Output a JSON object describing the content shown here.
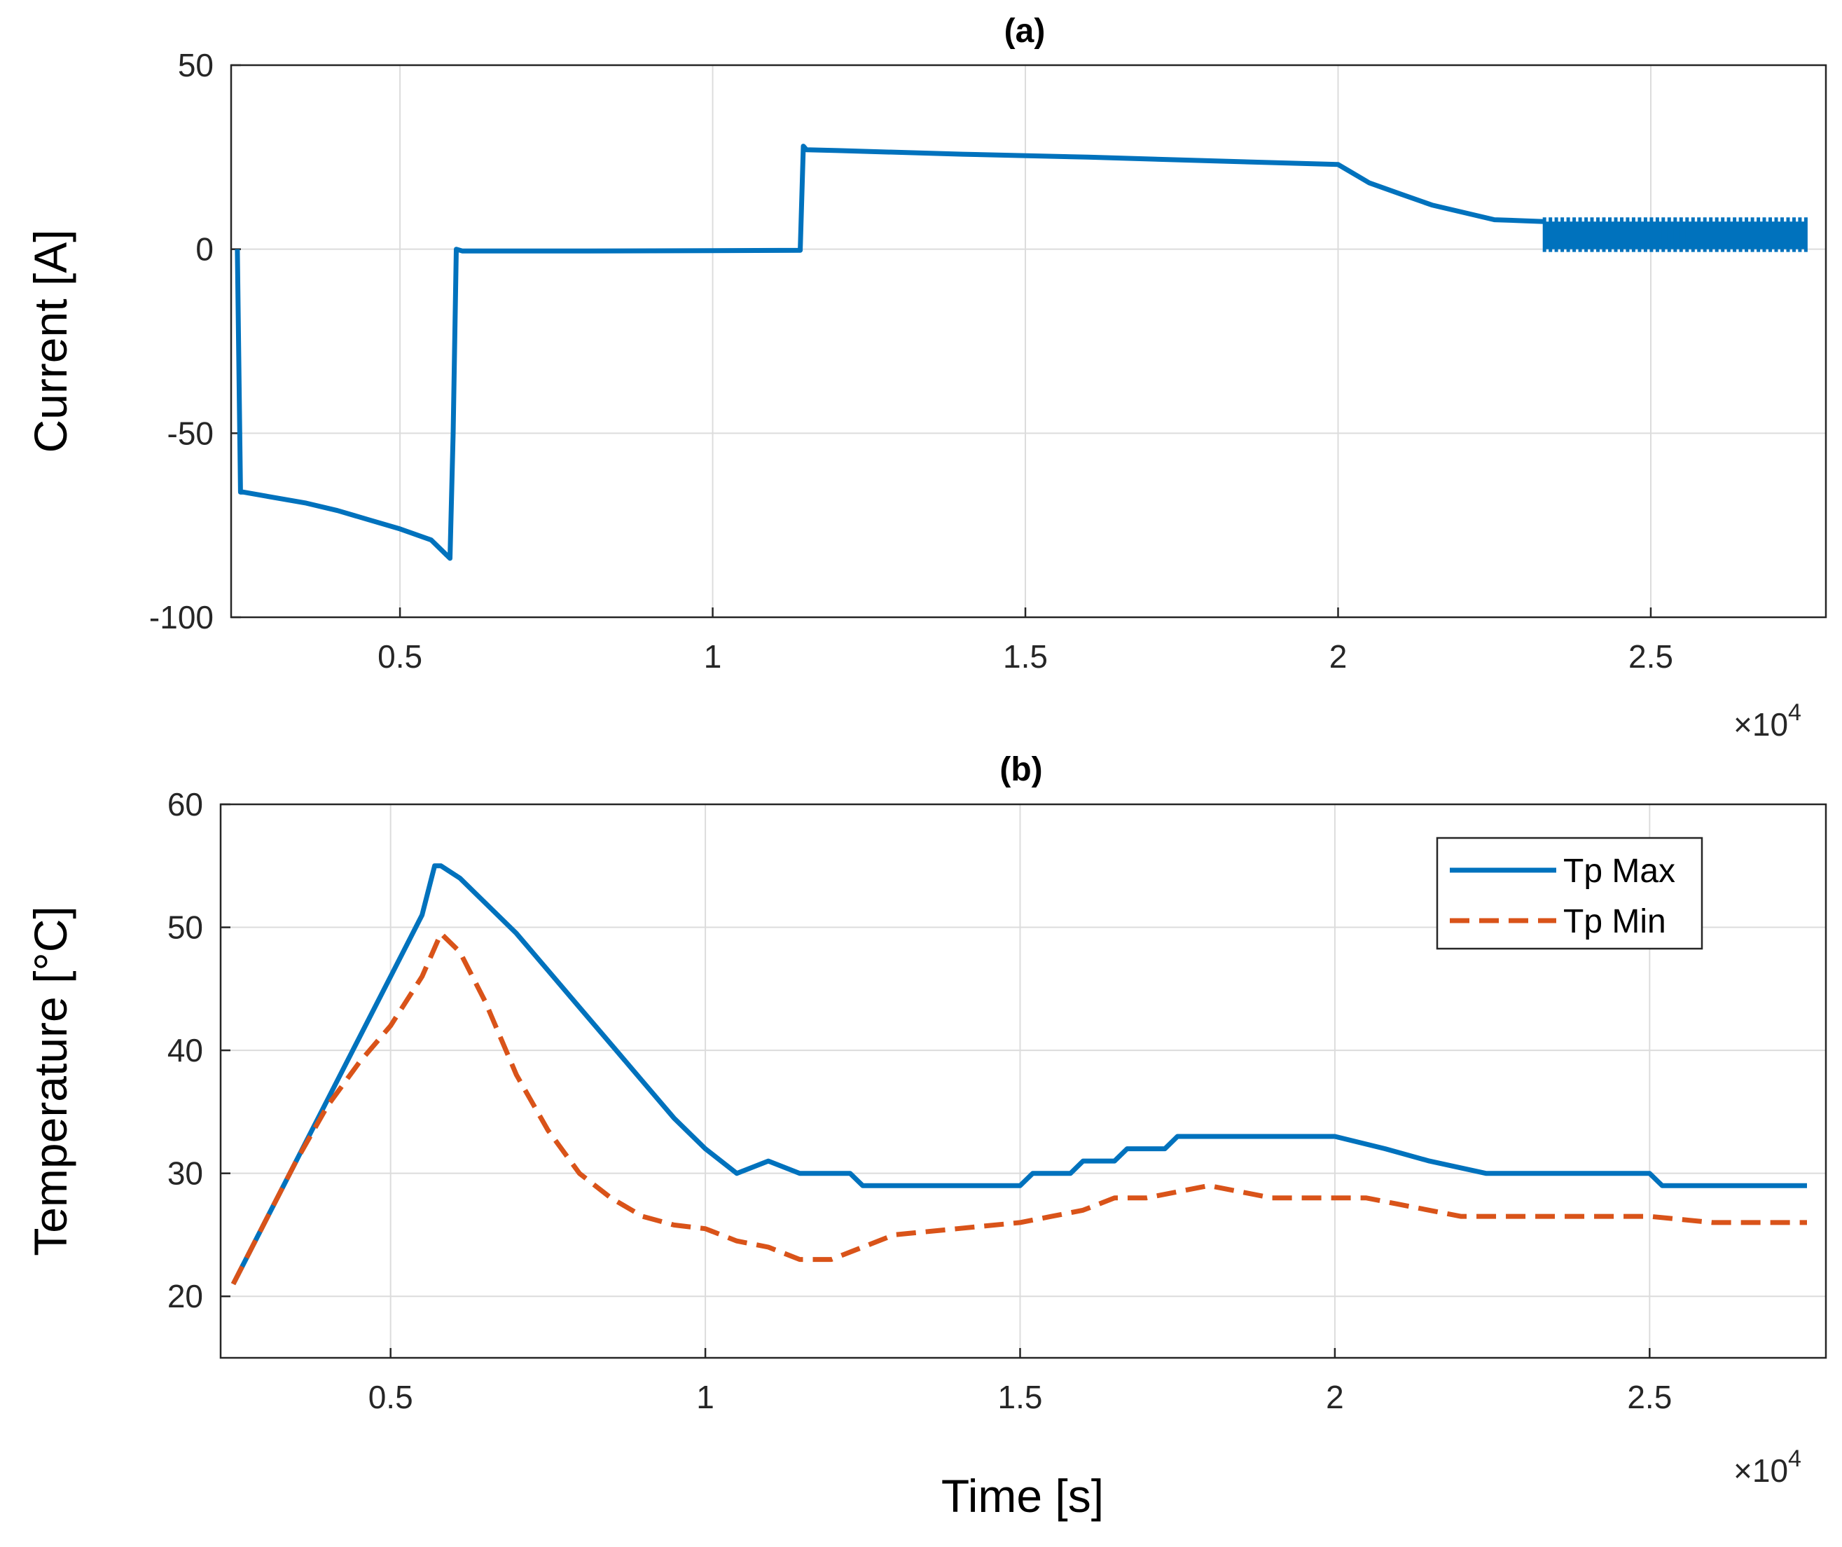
{
  "chart_data": [
    {
      "type": "line",
      "title": "(a)",
      "xlabel": "",
      "ylabel": "Current [A]",
      "xlim": [
        2300,
        27800
      ],
      "ylim": [
        -100,
        50
      ],
      "xticks": [
        5000,
        10000,
        15000,
        20000,
        25000
      ],
      "xtick_labels": [
        "0.5",
        "1",
        "1.5",
        "2",
        "2.5"
      ],
      "yticks": [
        -100,
        -50,
        0,
        50
      ],
      "ytick_labels": [
        "-100",
        "-50",
        "0",
        "50"
      ],
      "x_exponent": {
        "base": "×10",
        "power": "4"
      },
      "grid": true,
      "series": [
        {
          "name": "Current",
          "color": "#0072BD",
          "style": "solid",
          "x": [
            2400,
            2400,
            2450,
            2500,
            3000,
            3500,
            4000,
            4500,
            5000,
            5500,
            5800,
            5850,
            5900,
            6000,
            8000,
            10000,
            11400,
            11400,
            11450,
            11500,
            12000,
            14000,
            16000,
            18000,
            20000,
            20200,
            20500,
            21000,
            21500,
            22000,
            22500,
            23000,
            23300
          ],
          "y": [
            0,
            0,
            -66,
            -66,
            -67.5,
            -69,
            -71,
            -73.5,
            -76,
            -79,
            -84,
            -50,
            0,
            -0.5,
            -0.5,
            -0.4,
            -0.3,
            0,
            28,
            27,
            26.8,
            25.8,
            25,
            24,
            23,
            21,
            18,
            15,
            12,
            10,
            8,
            7.7,
            7.5
          ],
          "noise_band": {
            "x_start": 23300,
            "x_end": 27500,
            "y_low": 0,
            "y_high": 7.5
          }
        }
      ]
    },
    {
      "type": "line",
      "title": "(b)",
      "xlabel": "Time [s]",
      "ylabel": "Temperature [°C]",
      "xlim": [
        2300,
        27800
      ],
      "ylim": [
        15,
        60
      ],
      "xticks": [
        5000,
        10000,
        15000,
        20000,
        25000
      ],
      "xtick_labels": [
        "0.5",
        "1",
        "1.5",
        "2",
        "2.5"
      ],
      "yticks": [
        20,
        30,
        40,
        50,
        60
      ],
      "ytick_labels": [
        "20",
        "30",
        "40",
        "50",
        "60"
      ],
      "x_exponent": {
        "base": "×10",
        "power": "4"
      },
      "grid": true,
      "legend": {
        "placement": "top-right",
        "entries": [
          "Tp Max",
          "Tp Min"
        ]
      },
      "series": [
        {
          "name": "Tp Max",
          "color": "#0072BD",
          "style": "solid",
          "x": [
            2500,
            3000,
            3500,
            4000,
            4500,
            5000,
            5500,
            5700,
            5800,
            6100,
            6500,
            7000,
            7500,
            8000,
            8500,
            9000,
            9500,
            10000,
            10500,
            11000,
            11500,
            11600,
            12300,
            12500,
            15000,
            15200,
            15800,
            16000,
            16500,
            16700,
            17300,
            17500,
            20000,
            20800,
            21500,
            22400,
            25000,
            25200,
            27500
          ],
          "y": [
            21,
            26,
            31,
            36,
            41,
            46,
            51,
            55,
            55,
            54,
            52,
            49.5,
            46.5,
            43.5,
            40.5,
            37.5,
            34.5,
            32,
            30,
            31,
            30,
            30,
            30,
            29,
            29,
            30,
            30,
            31,
            31,
            32,
            32,
            33,
            33,
            32,
            31,
            30,
            30,
            29,
            29
          ]
        },
        {
          "name": "Tp Min",
          "color": "#D95319",
          "style": "dashed",
          "x": [
            2500,
            3000,
            3500,
            4000,
            4500,
            5000,
            5500,
            5800,
            6100,
            6500,
            7000,
            7500,
            8000,
            8500,
            9000,
            9500,
            10000,
            10500,
            11000,
            11500,
            12000,
            12500,
            13000,
            14000,
            15000,
            15500,
            16000,
            16500,
            17000,
            17500,
            18000,
            18500,
            19000,
            20000,
            20500,
            21000,
            22000,
            23000,
            24000,
            25000,
            26000,
            27500
          ],
          "y": [
            21,
            26,
            31,
            35.5,
            39,
            42,
            46,
            49.5,
            48,
            44,
            38,
            33.5,
            30,
            28,
            26.5,
            25.8,
            25.5,
            24.5,
            24,
            23,
            23,
            24,
            25,
            25.5,
            26,
            26.5,
            27,
            28,
            28,
            28.5,
            29,
            28.5,
            28,
            28,
            28,
            27.5,
            26.5,
            26.5,
            26.5,
            26.5,
            26,
            26
          ]
        }
      ]
    }
  ]
}
